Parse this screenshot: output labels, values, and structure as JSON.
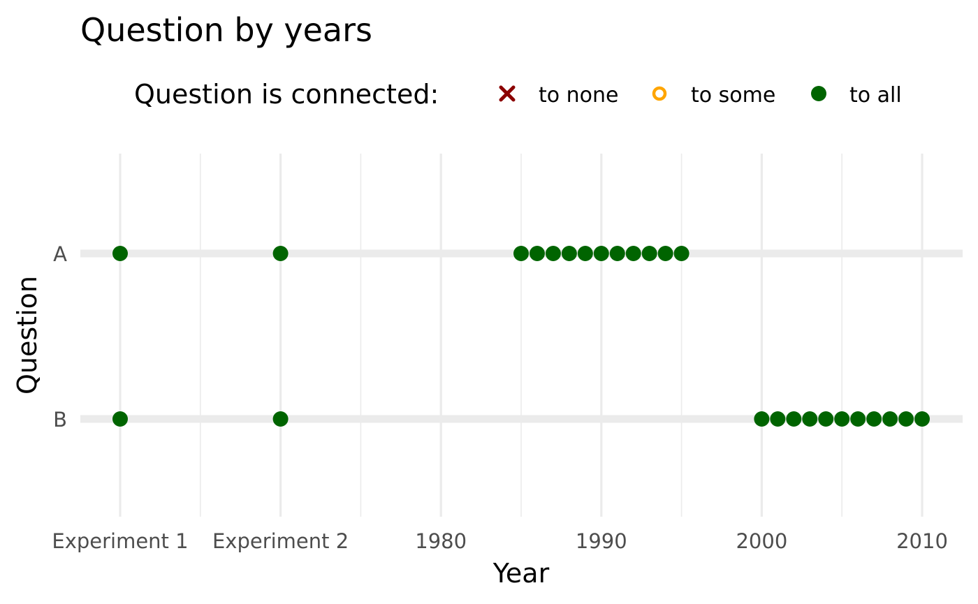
{
  "chart_data": {
    "type": "scatter",
    "title": "Question by years",
    "xlabel": "Year",
    "ylabel": "Question",
    "legend": {
      "title": "Question is connected:",
      "placement": "top",
      "entries": [
        {
          "key": "none",
          "label": "to none",
          "shape": "cross",
          "color": "#8b0000"
        },
        {
          "key": "some",
          "label": "to some",
          "shape": "open-circle",
          "color": "#ffa500"
        },
        {
          "key": "all",
          "label": "to all",
          "shape": "filled-circle",
          "color": "#006400"
        }
      ]
    },
    "x_ticks": [
      "Experiment 1",
      "Experiment 2",
      "1980",
      "1990",
      "2000",
      "2010"
    ],
    "y_categories": [
      "A",
      "B"
    ],
    "grid": true,
    "series": [
      {
        "connection": "all",
        "points": [
          {
            "x": "Experiment 1",
            "y": "A"
          },
          {
            "x": "Experiment 2",
            "y": "A"
          },
          {
            "x": 1985,
            "y": "A"
          },
          {
            "x": 1986,
            "y": "A"
          },
          {
            "x": 1987,
            "y": "A"
          },
          {
            "x": 1988,
            "y": "A"
          },
          {
            "x": 1989,
            "y": "A"
          },
          {
            "x": 1990,
            "y": "A"
          },
          {
            "x": 1991,
            "y": "A"
          },
          {
            "x": 1992,
            "y": "A"
          },
          {
            "x": 1993,
            "y": "A"
          },
          {
            "x": 1994,
            "y": "A"
          },
          {
            "x": 1995,
            "y": "A"
          },
          {
            "x": "Experiment 1",
            "y": "B"
          },
          {
            "x": "Experiment 2",
            "y": "B"
          },
          {
            "x": 2000,
            "y": "B"
          },
          {
            "x": 2001,
            "y": "B"
          },
          {
            "x": 2002,
            "y": "B"
          },
          {
            "x": 2003,
            "y": "B"
          },
          {
            "x": 2004,
            "y": "B"
          },
          {
            "x": 2005,
            "y": "B"
          },
          {
            "x": 2006,
            "y": "B"
          },
          {
            "x": 2007,
            "y": "B"
          },
          {
            "x": 2008,
            "y": "B"
          },
          {
            "x": 2009,
            "y": "B"
          },
          {
            "x": 2010,
            "y": "B"
          }
        ]
      }
    ]
  }
}
